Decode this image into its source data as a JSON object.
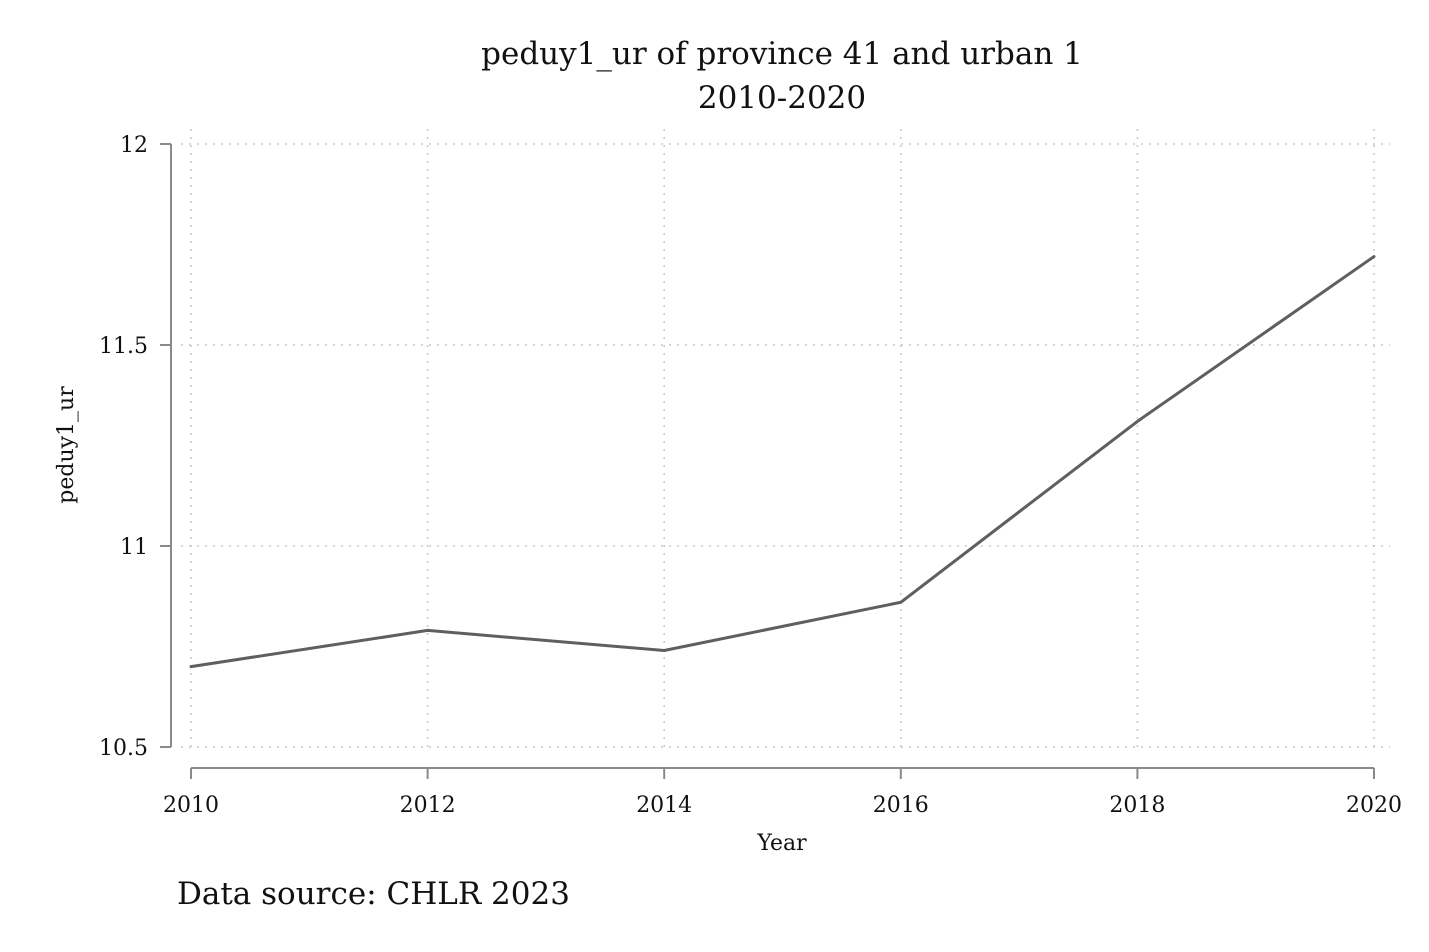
{
  "chart_data": {
    "type": "line",
    "title": "peduy1_ur of province 41 and urban 1",
    "subtitle": "2010-2020",
    "xlabel": "Year",
    "ylabel": "peduy1_ur",
    "x": [
      2010,
      2012,
      2014,
      2016,
      2018,
      2020
    ],
    "x_ticks": [
      2010,
      2012,
      2014,
      2016,
      2018,
      2020
    ],
    "y_ticks": [
      10.5,
      11,
      11.5,
      12
    ],
    "xlim": [
      2010,
      2020
    ],
    "ylim": [
      10.5,
      12
    ],
    "grid": true,
    "series": [
      {
        "values": [
          10.7,
          10.79,
          10.74,
          10.86,
          11.31,
          11.72
        ],
        "color": "#5f5f5f"
      }
    ]
  },
  "note": "Data source: CHLR 2023"
}
